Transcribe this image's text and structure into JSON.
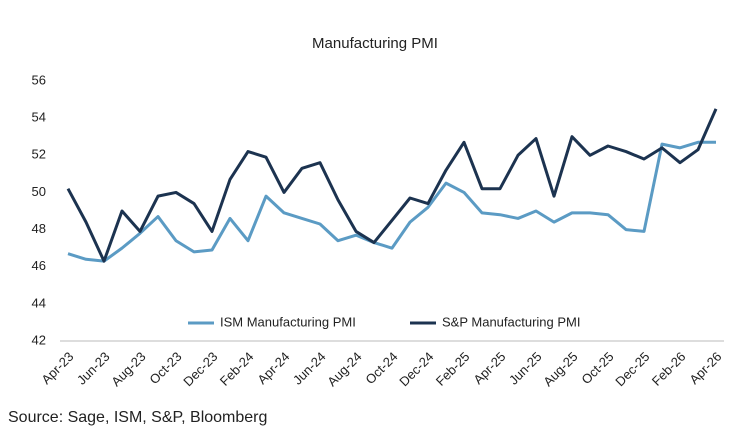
{
  "chart_data": {
    "type": "line",
    "title": "Manufacturing PMI",
    "categories": [
      "Apr-23",
      null,
      "Jun-23",
      null,
      "Aug-23",
      null,
      "Oct-23",
      null,
      "Dec-23",
      null,
      "Feb-24",
      null,
      "Apr-24",
      null,
      "Jun-24",
      null,
      "Aug-24",
      null,
      "Oct-24",
      null,
      "Dec-24",
      null,
      "Feb-25",
      null,
      "Apr-25",
      null,
      "Jun-25",
      null,
      "Aug-25",
      null,
      "Oct-25",
      null,
      "Dec-25",
      null,
      "Feb-26",
      null,
      "Apr-26"
    ],
    "series": [
      {
        "name": "ISM Manufacturing PMI",
        "color": "#5b9bc4",
        "values": [
          46.7,
          46.4,
          46.3,
          47.0,
          47.8,
          48.7,
          47.4,
          46.8,
          46.9,
          48.6,
          47.4,
          49.8,
          48.9,
          48.6,
          48.3,
          47.4,
          47.7,
          47.3,
          47.0,
          48.4,
          49.2,
          50.5,
          50.0,
          48.9,
          48.8,
          48.6,
          49.0,
          48.4,
          48.9,
          48.9,
          48.8,
          48.0,
          47.9,
          52.6,
          52.4,
          52.7,
          52.7
        ]
      },
      {
        "name": "S&P Manufacturing PMI",
        "color": "#1c3350",
        "values": [
          50.2,
          48.4,
          46.3,
          49.0,
          47.9,
          49.8,
          50.0,
          49.4,
          47.9,
          50.7,
          52.2,
          51.9,
          50.0,
          51.3,
          51.6,
          49.6,
          47.9,
          47.3,
          48.5,
          49.7,
          49.4,
          51.2,
          52.7,
          50.2,
          50.2,
          52.0,
          52.9,
          49.8,
          53.0,
          52.0,
          52.5,
          52.2,
          51.8,
          52.4,
          51.6,
          52.3,
          54.5
        ]
      }
    ],
    "ylim": [
      42,
      56
    ],
    "yticks": [
      42,
      44,
      46,
      48,
      50,
      52,
      54,
      56
    ],
    "grid": false,
    "legend": "bottom",
    "source": "Source: Sage, ISM, S&P, Bloomberg"
  }
}
